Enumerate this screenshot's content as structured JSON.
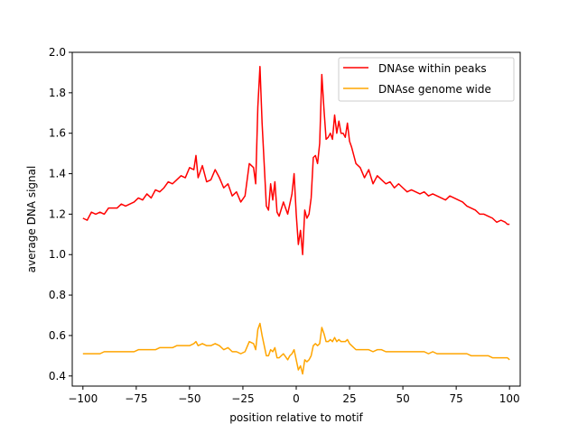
{
  "chart_data": {
    "type": "line",
    "title": "",
    "xlabel": "position relative to motif",
    "ylabel": "average DNA signal",
    "xlim": [
      -105,
      105
    ],
    "ylim": [
      0.35,
      2.0
    ],
    "xticks": [
      -100,
      -75,
      -50,
      -25,
      0,
      25,
      50,
      75,
      100
    ],
    "yticks": [
      0.4,
      0.6,
      0.8,
      1.0,
      1.2,
      1.4,
      1.6,
      1.8,
      2.0
    ],
    "xtick_labels": [
      "−100",
      "−75",
      "−50",
      "−25",
      "0",
      "25",
      "50",
      "75",
      "100"
    ],
    "ytick_labels": [
      "0.4",
      "0.6",
      "0.8",
      "1.0",
      "1.2",
      "1.4",
      "1.6",
      "1.8",
      "2.0"
    ],
    "grid": false,
    "legend_position": "top-right",
    "series": [
      {
        "name": "DNAse within peaks",
        "color": "#ff0000",
        "x": [
          -100,
          -98,
          -96,
          -94,
          -92,
          -90,
          -88,
          -86,
          -84,
          -82,
          -80,
          -78,
          -76,
          -74,
          -72,
          -70,
          -68,
          -66,
          -64,
          -62,
          -60,
          -58,
          -56,
          -54,
          -52,
          -50,
          -48,
          -47,
          -46,
          -44,
          -42,
          -40,
          -38,
          -36,
          -34,
          -32,
          -30,
          -28,
          -26,
          -24,
          -22,
          -20,
          -19,
          -18,
          -17,
          -16,
          -14,
          -13,
          -12,
          -11,
          -10,
          -9,
          -8,
          -6,
          -4,
          -3,
          -2,
          -1,
          0,
          1,
          2,
          3,
          4,
          5,
          6,
          7,
          8,
          9,
          10,
          11,
          12,
          13,
          14,
          15,
          16,
          17,
          18,
          19,
          20,
          21,
          22,
          23,
          24,
          25,
          26,
          28,
          30,
          32,
          34,
          36,
          38,
          40,
          42,
          44,
          46,
          48,
          50,
          52,
          54,
          56,
          58,
          60,
          62,
          64,
          66,
          68,
          70,
          72,
          74,
          76,
          78,
          80,
          82,
          84,
          86,
          88,
          90,
          92,
          94,
          96,
          98,
          99,
          100
        ],
        "values": [
          1.18,
          1.17,
          1.21,
          1.2,
          1.21,
          1.2,
          1.23,
          1.23,
          1.23,
          1.25,
          1.24,
          1.25,
          1.26,
          1.28,
          1.27,
          1.3,
          1.28,
          1.32,
          1.31,
          1.33,
          1.36,
          1.35,
          1.37,
          1.39,
          1.38,
          1.43,
          1.42,
          1.49,
          1.38,
          1.44,
          1.36,
          1.37,
          1.42,
          1.38,
          1.33,
          1.35,
          1.29,
          1.31,
          1.26,
          1.29,
          1.45,
          1.43,
          1.35,
          1.73,
          1.93,
          1.65,
          1.24,
          1.22,
          1.35,
          1.27,
          1.36,
          1.21,
          1.19,
          1.26,
          1.2,
          1.25,
          1.3,
          1.4,
          1.2,
          1.05,
          1.12,
          1.0,
          1.22,
          1.18,
          1.2,
          1.28,
          1.48,
          1.49,
          1.45,
          1.55,
          1.89,
          1.72,
          1.57,
          1.58,
          1.6,
          1.57,
          1.69,
          1.6,
          1.66,
          1.6,
          1.6,
          1.58,
          1.65,
          1.56,
          1.53,
          1.45,
          1.43,
          1.38,
          1.42,
          1.35,
          1.39,
          1.37,
          1.35,
          1.36,
          1.33,
          1.35,
          1.33,
          1.31,
          1.32,
          1.31,
          1.3,
          1.31,
          1.29,
          1.3,
          1.29,
          1.28,
          1.27,
          1.29,
          1.28,
          1.27,
          1.26,
          1.24,
          1.23,
          1.22,
          1.2,
          1.2,
          1.19,
          1.18,
          1.16,
          1.17,
          1.16,
          1.15,
          1.15
        ]
      },
      {
        "name": "DNAse genome wide",
        "color": "#ffa500",
        "x": [
          -100,
          -98,
          -96,
          -94,
          -92,
          -90,
          -88,
          -86,
          -84,
          -82,
          -80,
          -78,
          -76,
          -74,
          -72,
          -70,
          -68,
          -66,
          -64,
          -62,
          -60,
          -58,
          -56,
          -54,
          -52,
          -50,
          -48,
          -47,
          -46,
          -44,
          -42,
          -40,
          -38,
          -36,
          -34,
          -32,
          -30,
          -28,
          -26,
          -24,
          -22,
          -20,
          -19,
          -18,
          -17,
          -16,
          -14,
          -13,
          -12,
          -11,
          -10,
          -9,
          -8,
          -6,
          -4,
          -3,
          -2,
          -1,
          0,
          1,
          2,
          3,
          4,
          5,
          6,
          7,
          8,
          9,
          10,
          11,
          12,
          13,
          14,
          15,
          16,
          17,
          18,
          19,
          20,
          21,
          22,
          23,
          24,
          25,
          26,
          28,
          30,
          32,
          34,
          36,
          38,
          40,
          42,
          44,
          46,
          48,
          50,
          52,
          54,
          56,
          58,
          60,
          62,
          64,
          66,
          68,
          70,
          72,
          74,
          76,
          78,
          80,
          82,
          84,
          86,
          88,
          90,
          92,
          94,
          96,
          98,
          99,
          100
        ],
        "values": [
          0.51,
          0.51,
          0.51,
          0.51,
          0.51,
          0.52,
          0.52,
          0.52,
          0.52,
          0.52,
          0.52,
          0.52,
          0.52,
          0.53,
          0.53,
          0.53,
          0.53,
          0.53,
          0.54,
          0.54,
          0.54,
          0.54,
          0.55,
          0.55,
          0.55,
          0.55,
          0.56,
          0.57,
          0.55,
          0.56,
          0.55,
          0.55,
          0.56,
          0.55,
          0.53,
          0.54,
          0.52,
          0.52,
          0.51,
          0.52,
          0.57,
          0.56,
          0.53,
          0.63,
          0.66,
          0.6,
          0.5,
          0.5,
          0.53,
          0.52,
          0.54,
          0.49,
          0.49,
          0.51,
          0.48,
          0.5,
          0.51,
          0.53,
          0.48,
          0.43,
          0.45,
          0.41,
          0.48,
          0.47,
          0.48,
          0.5,
          0.55,
          0.56,
          0.55,
          0.56,
          0.64,
          0.61,
          0.57,
          0.57,
          0.58,
          0.57,
          0.59,
          0.57,
          0.58,
          0.57,
          0.57,
          0.57,
          0.58,
          0.56,
          0.55,
          0.53,
          0.53,
          0.53,
          0.53,
          0.52,
          0.53,
          0.53,
          0.52,
          0.52,
          0.52,
          0.52,
          0.52,
          0.52,
          0.52,
          0.52,
          0.52,
          0.52,
          0.51,
          0.52,
          0.51,
          0.51,
          0.51,
          0.51,
          0.51,
          0.51,
          0.51,
          0.51,
          0.5,
          0.5,
          0.5,
          0.5,
          0.5,
          0.49,
          0.49,
          0.49,
          0.49,
          0.49,
          0.48
        ]
      }
    ]
  }
}
